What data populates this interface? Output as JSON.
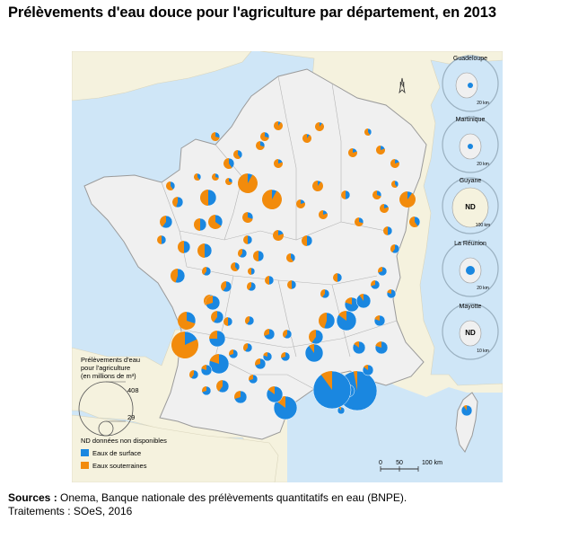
{
  "title": "Prélèvements d'eau douce pour l'agriculture par département, en 2013",
  "sources": {
    "label": "Sources :",
    "text": " Onema, Banque nationale des prélèvements quantitatifs en eau (BNPE).",
    "treatment": "Traitements : SOeS, 2016"
  },
  "legend": {
    "size_title_1": "Prélèvements d'eau",
    "size_title_2": "pour l'agriculture",
    "size_title_3": "(en millions de m³)",
    "size_max": "408",
    "size_min": "29",
    "nd_note": "ND données non disponibles",
    "surface_label": "Eaux de surface",
    "underground_label": "Eaux souterraines"
  },
  "colors": {
    "surface": "#1a87e0",
    "underground": "#f28b0c",
    "sea": "#cfe6f7",
    "land_france": "#f0f0f0",
    "land_neighbors": "#f5f2de"
  },
  "scale": {
    "l0": "0",
    "l1": "50",
    "l2": "100 km"
  },
  "north_label": "N",
  "insets": [
    {
      "name": "Guadeloupe",
      "scale": "20 km",
      "nd": ""
    },
    {
      "name": "Martinique",
      "scale": "20 km",
      "nd": ""
    },
    {
      "name": "Guyane",
      "scale": "100 km",
      "nd": "ND"
    },
    {
      "name": "La Réunion",
      "scale": "20 km",
      "nd": ""
    },
    {
      "name": "Mayotte",
      "scale": "10 km",
      "nd": "ND"
    }
  ],
  "pies_surface_fraction": {
    "Landes": 0.18,
    "Gers": 0.8,
    "Bouches-du-Rhone": 0.97,
    "Aude": 0.85,
    "Pyrenees-Orientales": 0.95,
    "Gironde": 0.3,
    "Charente-Maritime": 0.55,
    "Vienne": 0.35,
    "Beauce": 0.08,
    "Marne": 0.1,
    "Vaucluse": 0.9,
    "Drome": 0.85
  }
}
